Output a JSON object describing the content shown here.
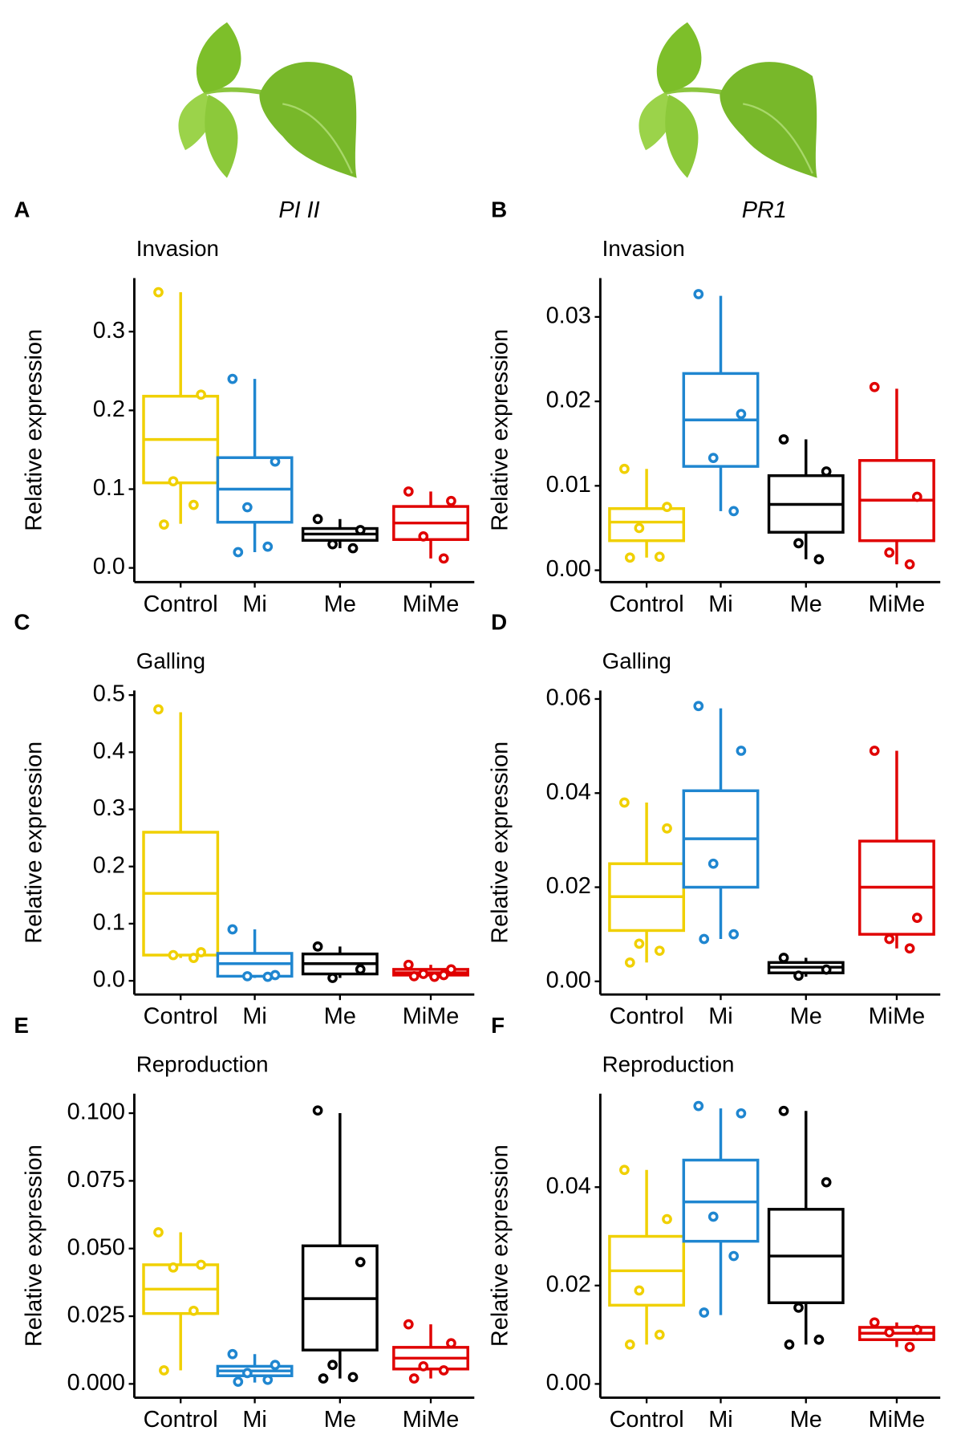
{
  "genes": [
    "PI II",
    "PR1"
  ],
  "chart_data": [
    {
      "type": "box",
      "panel": "A",
      "title": "Invasion",
      "ylabel": "Relative expression",
      "categories": [
        "Control",
        "Mi",
        "Me",
        "MiMe"
      ],
      "colors": [
        "#f0d000",
        "#1f86d0",
        "#000000",
        "#e00000"
      ],
      "ylim": [
        -0.018,
        0.368
      ],
      "yticks": [
        {
          "value": 0,
          "label": "0.0"
        },
        0.1,
        0.2,
        0.3
      ],
      "boxes": [
        {
          "whislo": 0.056,
          "q1": 0.108,
          "median": 0.163,
          "q3": 0.218,
          "whishi": 0.35,
          "points": [
            0.35,
            0.22,
            0.11,
            0.08,
            0.055
          ]
        },
        {
          "whislo": 0.02,
          "q1": 0.058,
          "median": 0.1,
          "q3": 0.14,
          "whishi": 0.24,
          "points": [
            0.24,
            0.135,
            0.077,
            0.027,
            0.02
          ]
        },
        {
          "whislo": 0.025,
          "q1": 0.035,
          "median": 0.043,
          "q3": 0.05,
          "whishi": 0.062,
          "points": [
            0.062,
            0.048,
            0.03,
            0.025
          ]
        },
        {
          "whislo": 0.012,
          "q1": 0.036,
          "median": 0.057,
          "q3": 0.078,
          "whishi": 0.097,
          "points": [
            0.097,
            0.085,
            0.04,
            0.012
          ]
        }
      ]
    },
    {
      "type": "box",
      "panel": "B",
      "title": "Invasion",
      "ylabel": "Relative expression",
      "categories": [
        "Control",
        "Mi",
        "Me",
        "MiMe"
      ],
      "colors": [
        "#f0d000",
        "#1f86d0",
        "#000000",
        "#e00000"
      ],
      "ylim": [
        -0.0014,
        0.0346
      ],
      "yticks": [
        {
          "value": 0,
          "label": "0.00"
        },
        0.01,
        0.02,
        0.03
      ],
      "boxes": [
        {
          "whislo": 0.0015,
          "q1": 0.0035,
          "median": 0.0057,
          "q3": 0.0073,
          "whishi": 0.012,
          "points": [
            0.012,
            0.0075,
            0.005,
            0.0016,
            0.0015
          ]
        },
        {
          "whislo": 0.007,
          "q1": 0.0123,
          "median": 0.0178,
          "q3": 0.0233,
          "whishi": 0.0325,
          "points": [
            0.0327,
            0.0185,
            0.0133,
            0.007
          ]
        },
        {
          "whislo": 0.0013,
          "q1": 0.0045,
          "median": 0.0078,
          "q3": 0.0112,
          "whishi": 0.0155,
          "points": [
            0.0155,
            0.0117,
            0.0032,
            0.0013
          ]
        },
        {
          "whislo": 0.0007,
          "q1": 0.0035,
          "median": 0.0083,
          "q3": 0.013,
          "whishi": 0.0215,
          "points": [
            0.0217,
            0.0087,
            0.0021,
            0.0007
          ]
        }
      ]
    },
    {
      "type": "box",
      "panel": "C",
      "title": "Galling",
      "ylabel": "Relative expression",
      "categories": [
        "Control",
        "Mi",
        "Me",
        "MiMe"
      ],
      "colors": [
        "#f0d000",
        "#1f86d0",
        "#000000",
        "#e00000"
      ],
      "ylim": [
        -0.024,
        0.508
      ],
      "yticks": [
        {
          "value": 0,
          "label": "0.0"
        },
        0.1,
        0.2,
        0.3,
        0.4,
        0.5
      ],
      "boxes": [
        {
          "whislo": 0.04,
          "q1": 0.045,
          "median": 0.153,
          "q3": 0.26,
          "whishi": 0.47,
          "points": [
            0.475,
            0.05,
            0.045,
            0.04
          ]
        },
        {
          "whislo": 0.005,
          "q1": 0.008,
          "median": 0.03,
          "q3": 0.048,
          "whishi": 0.09,
          "points": [
            0.09,
            0.01,
            0.008,
            0.007
          ]
        },
        {
          "whislo": 0.005,
          "q1": 0.012,
          "median": 0.03,
          "q3": 0.047,
          "whishi": 0.06,
          "points": [
            0.06,
            0.02,
            0.005
          ]
        },
        {
          "whislo": 0.005,
          "q1": 0.01,
          "median": 0.014,
          "q3": 0.02,
          "whishi": 0.028,
          "points": [
            0.028,
            0.02,
            0.012,
            0.01,
            0.008,
            0.007
          ]
        }
      ]
    },
    {
      "type": "box",
      "panel": "D",
      "title": "Galling",
      "ylabel": "Relative expression",
      "categories": [
        "Control",
        "Mi",
        "Me",
        "MiMe"
      ],
      "colors": [
        "#f0d000",
        "#1f86d0",
        "#000000",
        "#e00000"
      ],
      "ylim": [
        -0.0028,
        0.0618
      ],
      "yticks": [
        {
          "value": 0,
          "label": "0.00"
        },
        0.02,
        0.04,
        0.06
      ],
      "boxes": [
        {
          "whislo": 0.004,
          "q1": 0.0108,
          "median": 0.018,
          "q3": 0.025,
          "whishi": 0.038,
          "points": [
            0.038,
            0.0325,
            0.008,
            0.0065,
            0.004
          ]
        },
        {
          "whislo": 0.009,
          "q1": 0.02,
          "median": 0.0303,
          "q3": 0.0405,
          "whishi": 0.058,
          "points": [
            0.0585,
            0.049,
            0.025,
            0.01,
            0.009
          ]
        },
        {
          "whislo": 0.001,
          "q1": 0.0018,
          "median": 0.003,
          "q3": 0.004,
          "whishi": 0.005,
          "points": [
            0.005,
            0.0025,
            0.0012
          ]
        },
        {
          "whislo": 0.007,
          "q1": 0.01,
          "median": 0.02,
          "q3": 0.0298,
          "whishi": 0.049,
          "points": [
            0.049,
            0.0135,
            0.009,
            0.007
          ]
        }
      ]
    },
    {
      "type": "box",
      "panel": "E",
      "title": "Reproduction",
      "ylabel": "Relative expression",
      "categories": [
        "Control",
        "Mi",
        "Me",
        "MiMe"
      ],
      "colors": [
        "#f0d000",
        "#1f86d0",
        "#000000",
        "#e00000"
      ],
      "ylim": [
        -0.0051,
        0.1072
      ],
      "yticks": [
        {
          "value": 0,
          "label": "0.000"
        },
        0.025,
        {
          "value": 0.05,
          "label": "0.050"
        },
        0.075,
        {
          "value": 0.1,
          "label": "0.100"
        }
      ],
      "boxes": [
        {
          "whislo": 0.005,
          "q1": 0.026,
          "median": 0.035,
          "q3": 0.044,
          "whishi": 0.056,
          "points": [
            0.056,
            0.044,
            0.043,
            0.027,
            0.005
          ]
        },
        {
          "whislo": 0.0005,
          "q1": 0.003,
          "median": 0.0048,
          "q3": 0.0065,
          "whishi": 0.011,
          "points": [
            0.011,
            0.007,
            0.004,
            0.0015,
            0.0008
          ]
        },
        {
          "whislo": 0.002,
          "q1": 0.0125,
          "median": 0.0315,
          "q3": 0.051,
          "whishi": 0.1,
          "points": [
            0.101,
            0.045,
            0.007,
            0.0025,
            0.002
          ]
        },
        {
          "whislo": 0.002,
          "q1": 0.0055,
          "median": 0.0095,
          "q3": 0.0135,
          "whishi": 0.022,
          "points": [
            0.022,
            0.015,
            0.0065,
            0.005,
            0.002
          ]
        }
      ]
    },
    {
      "type": "box",
      "panel": "F",
      "title": "Reproduction",
      "ylabel": "Relative expression",
      "categories": [
        "Control",
        "Mi",
        "Me",
        "MiMe"
      ],
      "colors": [
        "#f0d000",
        "#1f86d0",
        "#000000",
        "#e00000"
      ],
      "ylim": [
        -0.0028,
        0.059
      ],
      "yticks": [
        {
          "value": 0,
          "label": "0.00"
        },
        0.02,
        0.04
      ],
      "boxes": [
        {
          "whislo": 0.008,
          "q1": 0.016,
          "median": 0.023,
          "q3": 0.03,
          "whishi": 0.0435,
          "points": [
            0.0435,
            0.0335,
            0.019,
            0.01,
            0.008
          ]
        },
        {
          "whislo": 0.014,
          "q1": 0.029,
          "median": 0.037,
          "q3": 0.0455,
          "whishi": 0.056,
          "points": [
            0.0565,
            0.055,
            0.034,
            0.026,
            0.0145
          ]
        },
        {
          "whislo": 0.008,
          "q1": 0.0165,
          "median": 0.026,
          "q3": 0.0355,
          "whishi": 0.0555,
          "points": [
            0.0555,
            0.041,
            0.0155,
            0.009,
            0.008
          ]
        },
        {
          "whislo": 0.0075,
          "q1": 0.009,
          "median": 0.0103,
          "q3": 0.0115,
          "whishi": 0.0125,
          "points": [
            0.0125,
            0.011,
            0.0105,
            0.0075
          ]
        }
      ]
    }
  ]
}
